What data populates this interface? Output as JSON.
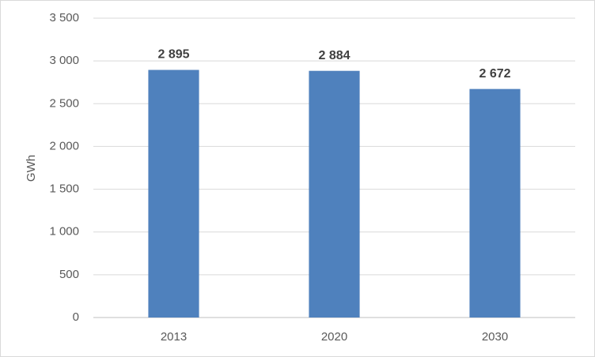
{
  "chart_data": {
    "type": "bar",
    "y_label": "GWh",
    "categories": [
      "2013",
      "2020",
      "2030"
    ],
    "values": [
      2895,
      2884,
      2672
    ],
    "value_labels": [
      "2 895",
      "2 884",
      "2 672"
    ],
    "color": "#4f81bd",
    "ylim": [
      0,
      3500
    ],
    "yticks": [
      0,
      500,
      {
        "value": 1000,
        "label": "1 000"
      },
      {
        "value": 1500,
        "label": "1 500"
      },
      {
        "value": 2000,
        "label": "2 000"
      },
      {
        "value": 2500,
        "label": "2 500"
      },
      {
        "value": 3000,
        "label": "3 000"
      },
      {
        "value": 3500,
        "label": "3 500"
      }
    ],
    "grid": true
  }
}
